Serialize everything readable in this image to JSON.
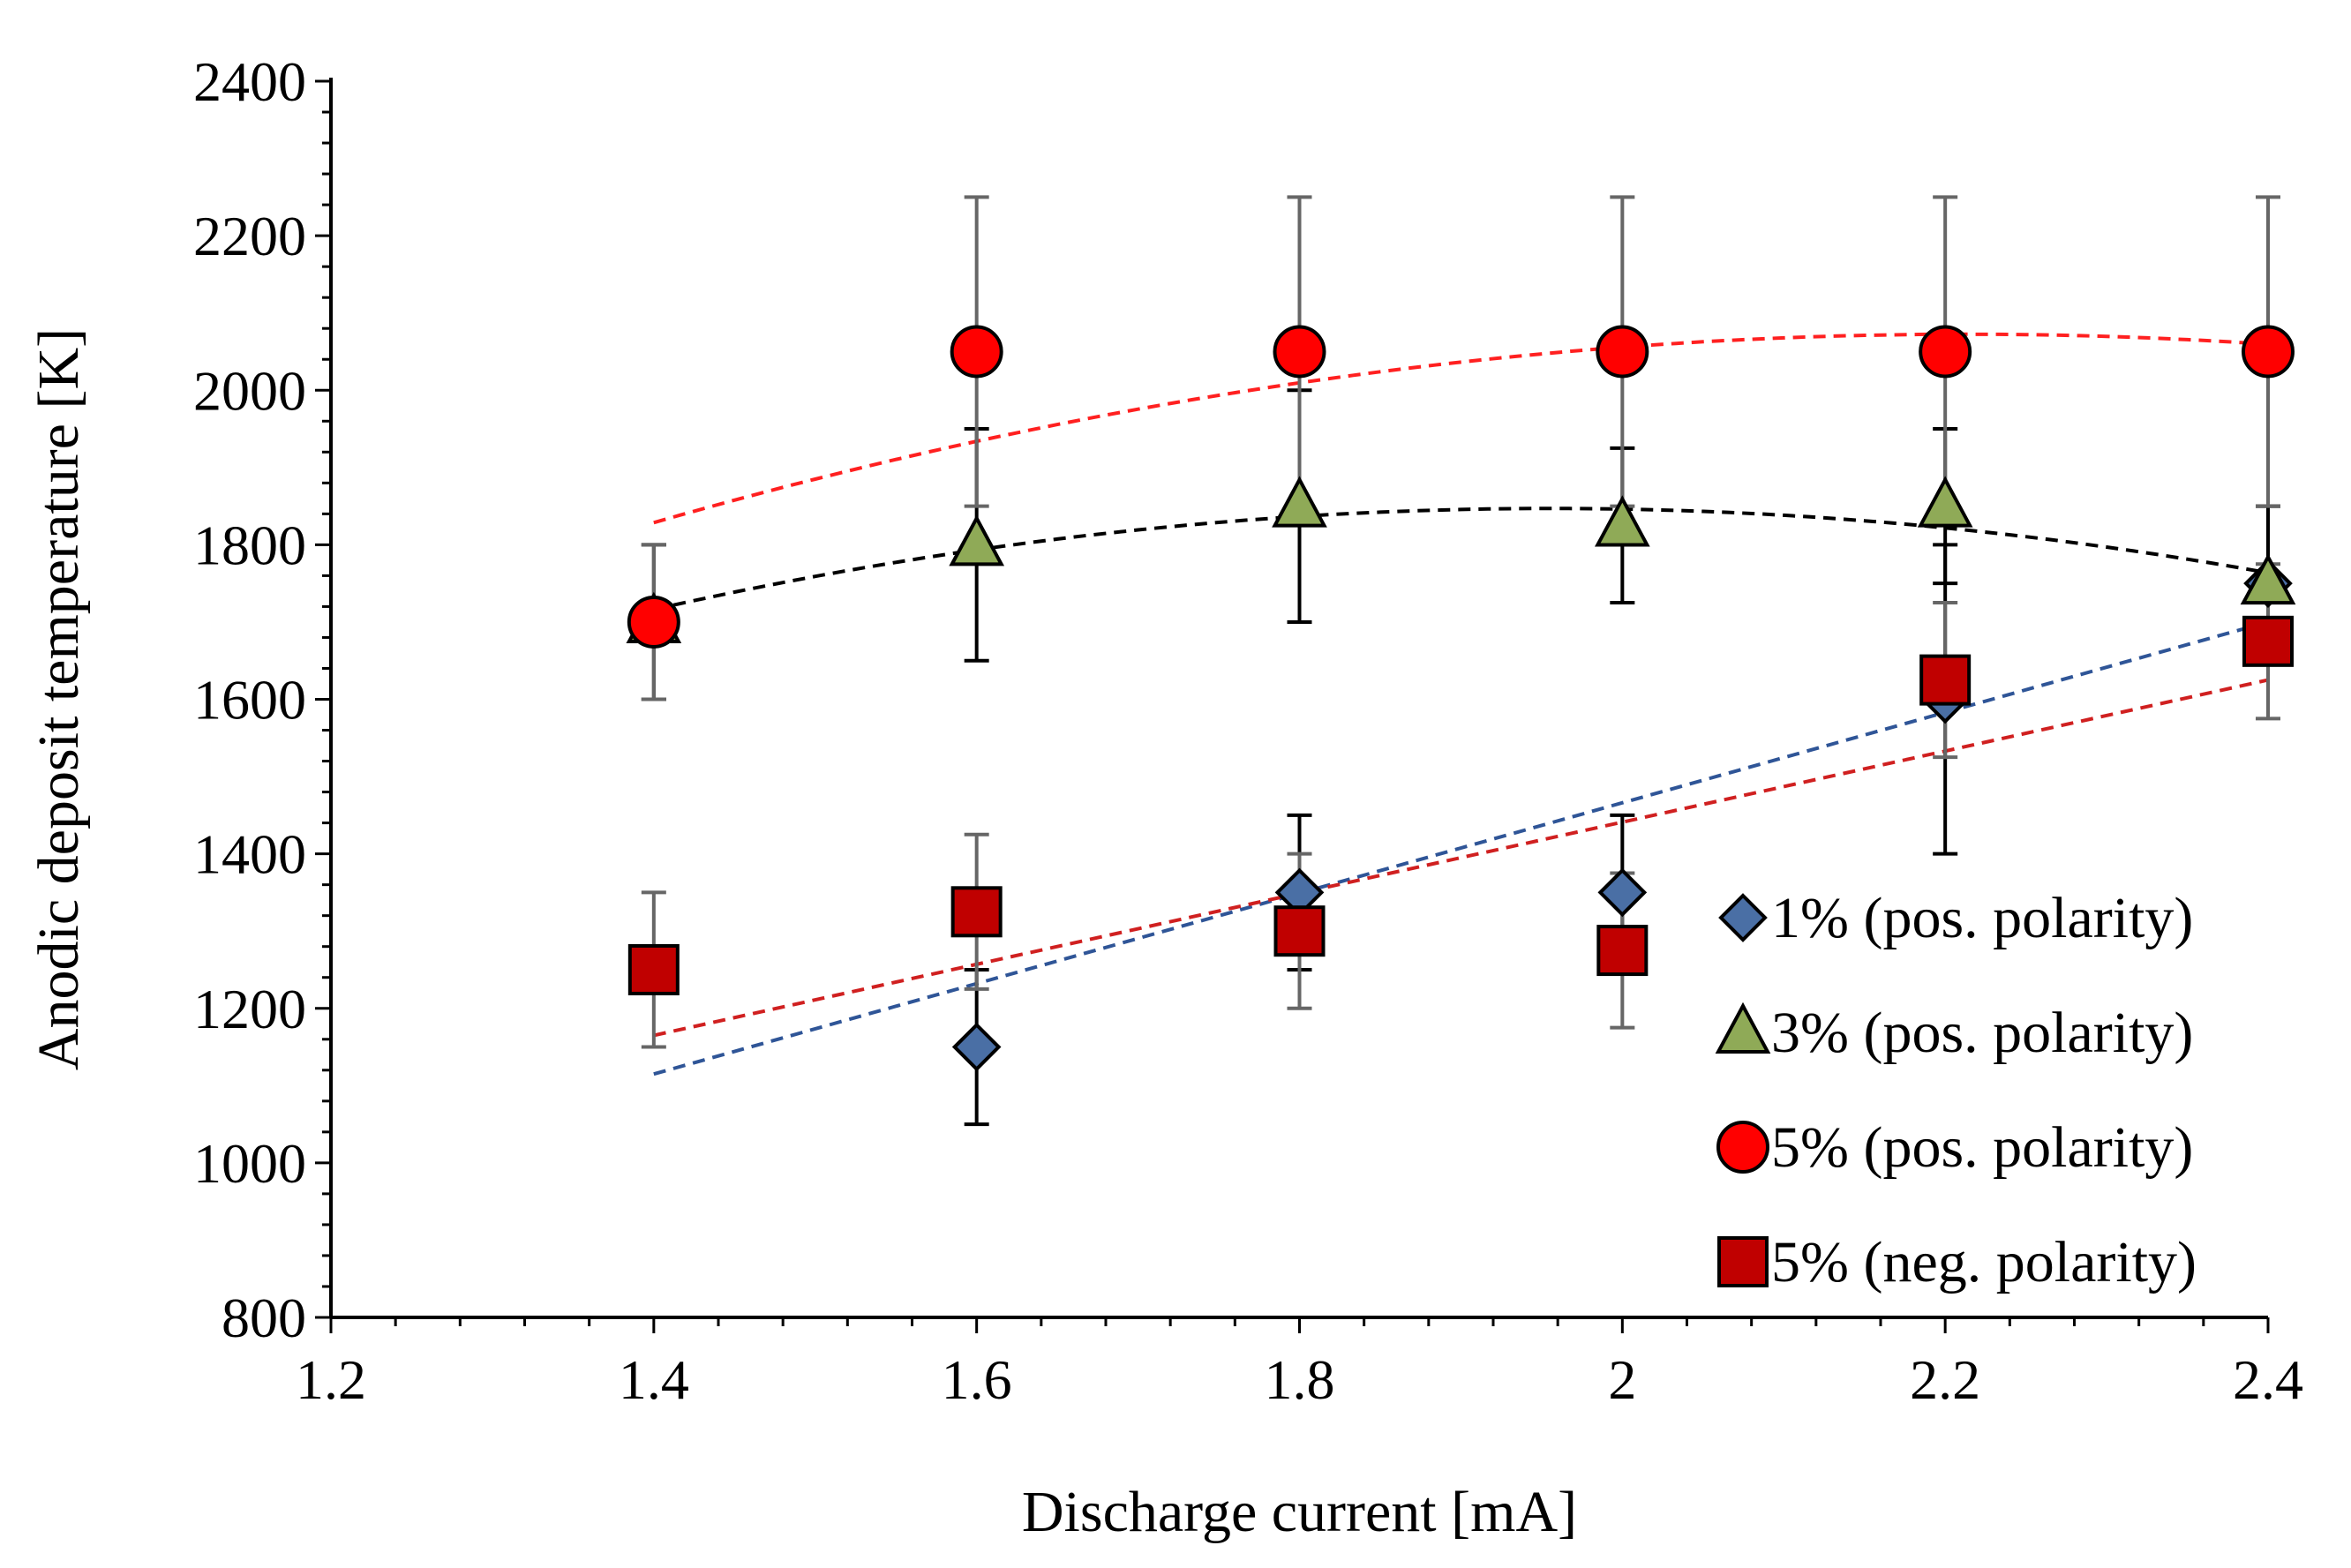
{
  "chart_data": {
    "type": "scatter",
    "title": "",
    "xlabel": "Discharge current [mA]",
    "ylabel": "Anodic deposit temperature  [K]",
    "xlim": [
      1.2,
      2.4
    ],
    "ylim": [
      800,
      2400
    ],
    "xticks": [
      1.2,
      1.4,
      1.6,
      1.8,
      2.0,
      2.2,
      2.4
    ],
    "xtick_labels": [
      "1.2",
      "1.4",
      "1.6",
      "1.8",
      "2",
      "2.2",
      "2.4"
    ],
    "yticks": [
      800,
      1000,
      1200,
      1400,
      1600,
      1800,
      2000,
      2200,
      2400
    ],
    "ytick_labels": [
      "800",
      "1000",
      "1200",
      "1400",
      "1600",
      "1800",
      "2000",
      "2200",
      "2400"
    ],
    "grid": false,
    "legend_position": "bottom-right",
    "series": [
      {
        "name": "1% (pos. polarity)",
        "marker": "diamond",
        "color": "#4a6fa5",
        "trend_color": "#2f5597",
        "errbar_color": "#000000",
        "x": [
          1.6,
          1.8,
          2.0,
          2.2,
          2.4
        ],
        "y": [
          1150,
          1350,
          1350,
          1600,
          1750
        ],
        "err": [
          100,
          100,
          100,
          200,
          100
        ],
        "trend": {
          "type": "linear",
          "x": [
            1.4,
            2.4
          ],
          "y": [
            1115,
            1700
          ]
        }
      },
      {
        "name": "3% (pos. polarity)",
        "marker": "triangle",
        "color": "#8faa57",
        "trend_color": "#000000",
        "errbar_color": "#000000",
        "x": [
          1.4,
          1.6,
          1.8,
          2.0,
          2.2,
          2.4
        ],
        "y": [
          1700,
          1800,
          1850,
          1825,
          1850,
          1750
        ],
        "err": [
          100,
          150,
          150,
          100,
          100,
          100
        ],
        "trend": {
          "type": "poly2",
          "x": [
            1.4,
            1.6,
            1.8,
            2.0,
            2.2,
            2.4
          ],
          "y": [
            1715,
            1795,
            1838,
            1845,
            1820,
            1765
          ]
        }
      },
      {
        "name": "5% (pos. polarity)",
        "marker": "circle",
        "color": "#ff0000",
        "trend_color": "#ff2020",
        "errbar_color": "#666666",
        "x": [
          1.4,
          1.6,
          1.8,
          2.0,
          2.2,
          2.4
        ],
        "y": [
          1700,
          2050,
          2050,
          2050,
          2050,
          2050
        ],
        "err": [
          100,
          200,
          200,
          200,
          200,
          200
        ],
        "trend": {
          "type": "poly2",
          "x": [
            1.4,
            1.6,
            1.8,
            2.0,
            2.2,
            2.4
          ],
          "y": [
            1828,
            1935,
            2010,
            2055,
            2072,
            2060
          ]
        }
      },
      {
        "name": "5% (neg. polarity)",
        "marker": "square",
        "color": "#c00000",
        "trend_color": "#d02020",
        "errbar_color": "#666666",
        "x": [
          1.4,
          1.6,
          1.8,
          2.0,
          2.2,
          2.4
        ],
        "y": [
          1250,
          1325,
          1300,
          1275,
          1625,
          1675
        ],
        "err": [
          100,
          100,
          100,
          100,
          100,
          100
        ],
        "trend": {
          "type": "linear",
          "x": [
            1.4,
            2.4
          ],
          "y": [
            1165,
            1625
          ]
        }
      }
    ]
  }
}
